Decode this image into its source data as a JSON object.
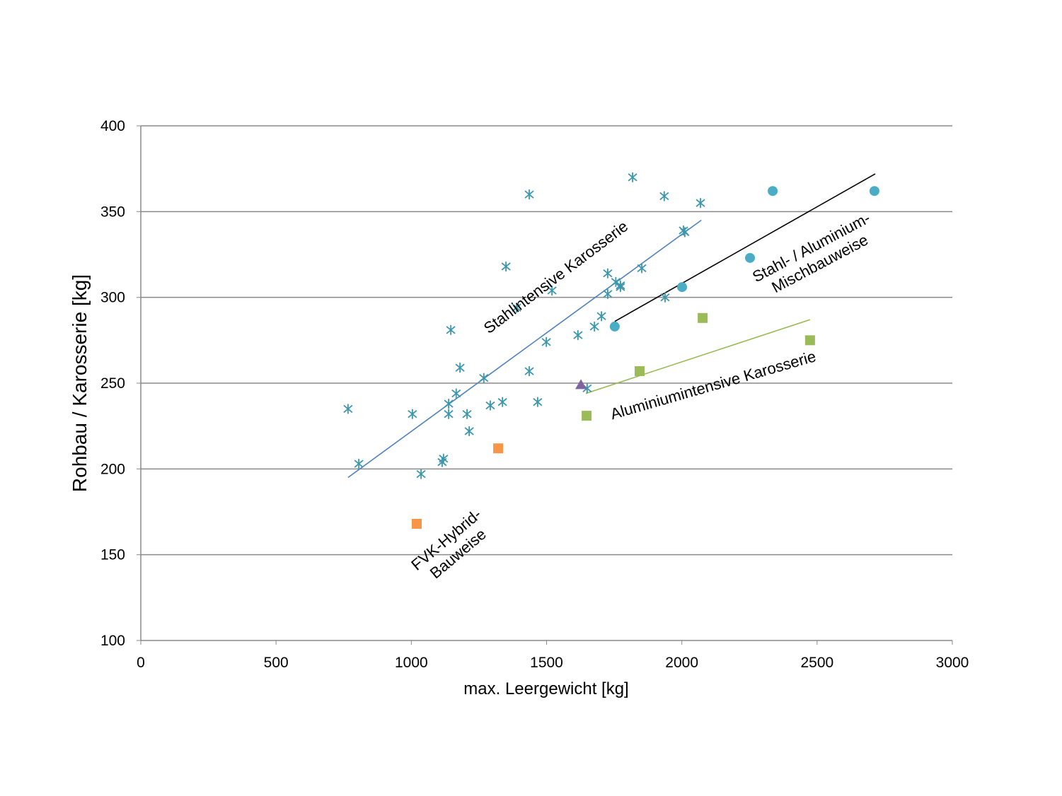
{
  "chart_data": {
    "type": "scatter",
    "xlabel": "max. Leergewicht  [kg]",
    "ylabel": "Rohbau / Karosserie [kg]",
    "xlim": [
      0,
      3000
    ],
    "ylim": [
      100,
      400
    ],
    "xticks": [
      "0",
      "500",
      "1000",
      "1500",
      "2000",
      "2500",
      "3000"
    ],
    "yticks": [
      "100",
      "150",
      "200",
      "250",
      "300",
      "350",
      "400"
    ],
    "grid": "horizontal",
    "colors": {
      "stars": "#3c97ad",
      "circles": "#4bacc6",
      "green": "#9bbb59",
      "orange": "#f79646",
      "purple": "#8064a2",
      "steel_line": "#4f81bd",
      "mixed_line": "#000000",
      "alu_line": "#9bbb59"
    },
    "series": [
      {
        "marker": "asterisk",
        "points": [
          [
            766,
            235
          ],
          [
            806,
            203
          ],
          [
            1004,
            232
          ],
          [
            1036,
            197
          ],
          [
            1114,
            204
          ],
          [
            1119,
            206
          ],
          [
            1138,
            238
          ],
          [
            1138,
            232
          ],
          [
            1146,
            281
          ],
          [
            1166,
            244
          ],
          [
            1180,
            259
          ],
          [
            1206,
            232
          ],
          [
            1214,
            222
          ],
          [
            1268,
            253
          ],
          [
            1292,
            237
          ],
          [
            1337,
            239
          ],
          [
            1350,
            318
          ],
          [
            1389,
            294
          ],
          [
            1436,
            360
          ],
          [
            1436,
            257
          ],
          [
            1467,
            239
          ],
          [
            1499,
            274
          ],
          [
            1520,
            304
          ],
          [
            1616,
            278
          ],
          [
            1650,
            247
          ],
          [
            1677,
            283
          ],
          [
            1703,
            289
          ],
          [
            1726,
            314
          ],
          [
            1726,
            302
          ],
          [
            1756,
            309
          ],
          [
            1773,
            307
          ],
          [
            1773,
            306
          ],
          [
            1818,
            370
          ],
          [
            1852,
            317
          ],
          [
            1935,
            359
          ],
          [
            1938,
            300
          ],
          [
            2006,
            339
          ],
          [
            2011,
            338
          ],
          [
            2069,
            355
          ]
        ]
      },
      {
        "marker": "circle",
        "points": [
          [
            1752,
            283
          ],
          [
            2001,
            306
          ],
          [
            2252,
            323
          ],
          [
            2336,
            362
          ],
          [
            2712,
            362
          ]
        ]
      },
      {
        "marker": "square-green",
        "points": [
          [
            1648,
            231
          ],
          [
            1844,
            257
          ],
          [
            2077,
            288
          ],
          [
            2474,
            275
          ]
        ]
      },
      {
        "marker": "square-orange",
        "points": [
          [
            1020,
            168
          ],
          [
            1321,
            212
          ]
        ]
      },
      {
        "marker": "triangle",
        "points": [
          [
            1627,
            249
          ]
        ]
      }
    ],
    "trendlines": [
      {
        "color": "steel_line",
        "from": [
          766,
          195
        ],
        "to": [
          2072,
          345
        ]
      },
      {
        "color": "mixed_line",
        "from": [
          1752,
          286
        ],
        "to": [
          2715,
          372
        ]
      },
      {
        "color": "alu_line",
        "from": [
          1645,
          244
        ],
        "to": [
          2474,
          287
        ]
      }
    ],
    "annotations": {
      "steel": "Stahlintensive Karosserie",
      "mixed_1": "Stahl- / Aluminium-",
      "mixed_2": "Mischbauweise",
      "alu": "Aluminiumintensive Karosserie",
      "fvk_1": "FVK-Hybrid-",
      "fvk_2": "Bauweise"
    }
  }
}
